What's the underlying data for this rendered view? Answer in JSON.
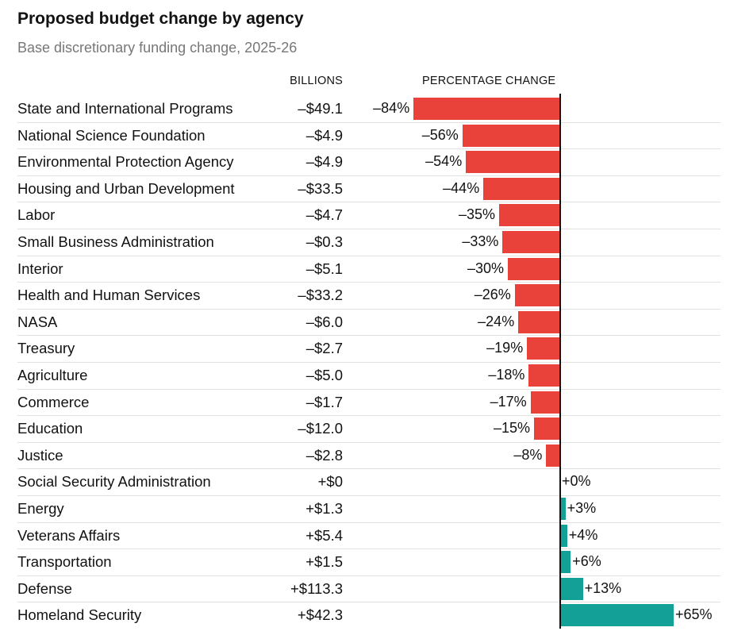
{
  "header": {
    "title": "Proposed budget change by agency",
    "subtitle": "Base discretionary funding change, 2025-26"
  },
  "columns": {
    "billions": "BILLIONS",
    "percent": "PERCENTAGE CHANGE"
  },
  "colors": {
    "negative": "#e8423b",
    "positive": "#13a096",
    "rule": "#e2e2e2",
    "axis": "#121212"
  },
  "chart_data": {
    "type": "bar",
    "orientation": "horizontal",
    "title": "Proposed budget change by agency",
    "subtitle": "Base discretionary funding change, 2025-26",
    "xlabel": "PERCENTAGE CHANGE",
    "xlim": [
      -84,
      65
    ],
    "categories": [
      "State and International Programs",
      "National Science Foundation",
      "Environmental Protection Agency",
      "Housing and Urban Development",
      "Labor",
      "Small Business Administration",
      "Interior",
      "Health and Human Services",
      "NASA",
      "Treasury",
      "Agriculture",
      "Commerce",
      "Education",
      "Justice",
      "Social Security Administration",
      "Energy",
      "Veterans Affairs",
      "Transportation",
      "Defense",
      "Homeland Security"
    ],
    "billions_labels": [
      "–$49.1",
      "–$4.9",
      "–$4.9",
      "–$33.5",
      "–$4.7",
      "–$0.3",
      "–$5.1",
      "–$33.2",
      "–$6.0",
      "–$2.7",
      "–$5.0",
      "–$1.7",
      "–$12.0",
      "–$2.8",
      "+$0",
      "+$1.3",
      "+$5.4",
      "+$1.5",
      "+$113.3",
      "+$42.3"
    ],
    "values": [
      -84,
      -56,
      -54,
      -44,
      -35,
      -33,
      -30,
      -26,
      -24,
      -19,
      -18,
      -17,
      -15,
      -8,
      0,
      3,
      4,
      6,
      13,
      65
    ],
    "value_labels": [
      "–84%",
      "–56%",
      "–54%",
      "–44%",
      "–35%",
      "–33%",
      "–30%",
      "–26%",
      "–24%",
      "–19%",
      "–18%",
      "–17%",
      "–15%",
      "–8%",
      "+0%",
      "+3%",
      "+4%",
      "+6%",
      "+13%",
      "+65%"
    ]
  }
}
